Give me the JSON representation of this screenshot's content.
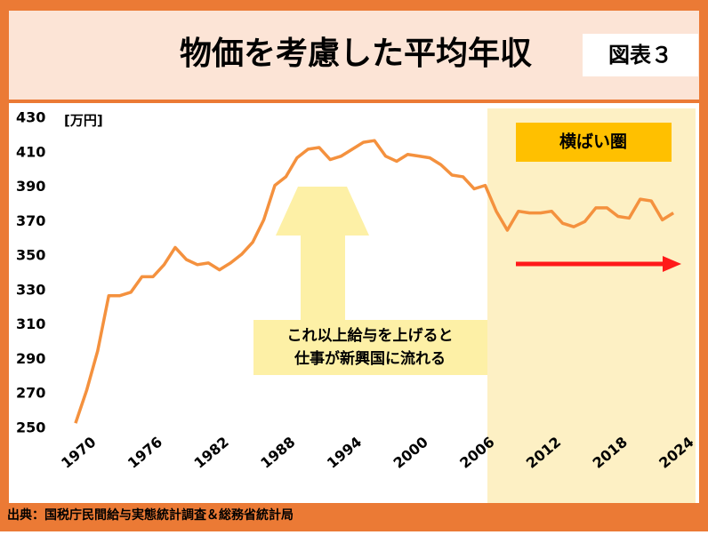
{
  "chart_data": {
    "type": "line",
    "title": "物価を考慮した平均年収",
    "figure_label": "図表３",
    "y_unit": "[万円]",
    "source": "出典：国税庁民間給与実態統計調査＆総務省統計局",
    "annotations": [
      "横ばい圏",
      "これ以上給与を上げると",
      "仕事が新興国に流れる"
    ],
    "x": [
      1970,
      1971,
      1972,
      1973,
      1974,
      1975,
      1976,
      1977,
      1978,
      1979,
      1980,
      1981,
      1982,
      1983,
      1984,
      1985,
      1986,
      1987,
      1988,
      1989,
      1990,
      1991,
      1992,
      1993,
      1994,
      1995,
      1996,
      1997,
      1998,
      1999,
      2000,
      2001,
      2002,
      2003,
      2004,
      2005,
      2006,
      2007,
      2008,
      2009,
      2010,
      2011,
      2012,
      2013,
      2014,
      2015,
      2016,
      2017,
      2018,
      2019,
      2020,
      2021,
      2022,
      2023,
      2024
    ],
    "series": [
      {
        "color": "#f4913e",
        "values": [
          253,
          272,
          295,
          327,
          327,
          329,
          338,
          338,
          345,
          355,
          348,
          345,
          346,
          342,
          346,
          351,
          358,
          371,
          391,
          396,
          407,
          412,
          413,
          406,
          408,
          412,
          416,
          417,
          408,
          405,
          409,
          408,
          407,
          403,
          397,
          396,
          389,
          391,
          376,
          365,
          376,
          375,
          375,
          376,
          369,
          367,
          370,
          378,
          378,
          373,
          372,
          383,
          382,
          371,
          375
        ]
      }
    ],
    "xlim": [
      1968.8,
      2026
    ],
    "xticks": [
      1970,
      1976,
      1982,
      1988,
      1994,
      2000,
      2006,
      2012,
      2018,
      2024
    ],
    "ylim": [
      250,
      430
    ],
    "yticks": [
      250,
      270,
      290,
      310,
      330,
      350,
      370,
      390,
      410,
      430
    ],
    "shaded_x": [
      2007.2,
      2026
    ],
    "shade_color": "#fdf0c4"
  }
}
